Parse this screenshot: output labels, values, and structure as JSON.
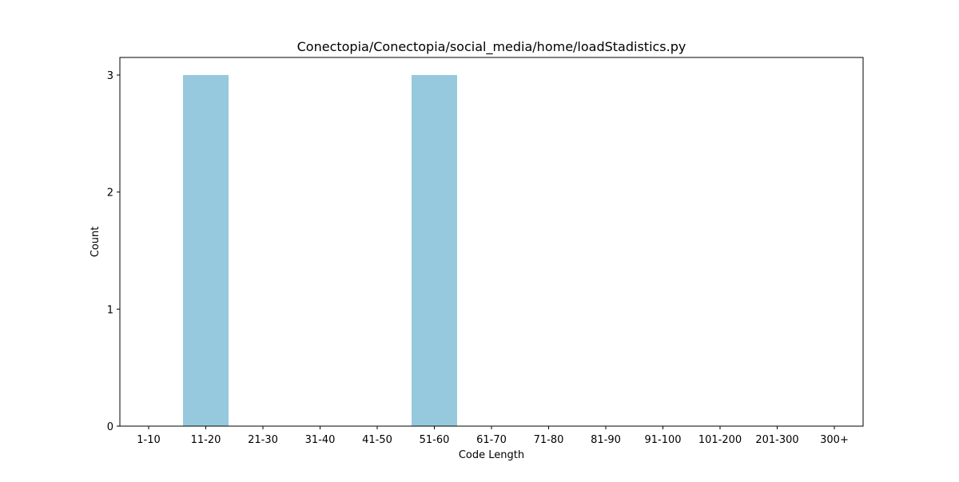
{
  "chart_data": {
    "type": "bar",
    "title": "Conectopia/Conectopia/social_media/home/loadStadistics.py",
    "xlabel": "Code Length",
    "ylabel": "Count",
    "categories": [
      "1-10",
      "11-20",
      "21-30",
      "31-40",
      "41-50",
      "51-60",
      "61-70",
      "71-80",
      "81-90",
      "91-100",
      "101-200",
      "201-300",
      "300+"
    ],
    "values": [
      0,
      3,
      0,
      0,
      0,
      3,
      0,
      0,
      0,
      0,
      0,
      0,
      0
    ],
    "ylim": [
      0,
      3.15
    ],
    "yticks": [
      0,
      1,
      2,
      3
    ],
    "bar_color": "#96c9de",
    "grid": false,
    "legend": "none"
  }
}
